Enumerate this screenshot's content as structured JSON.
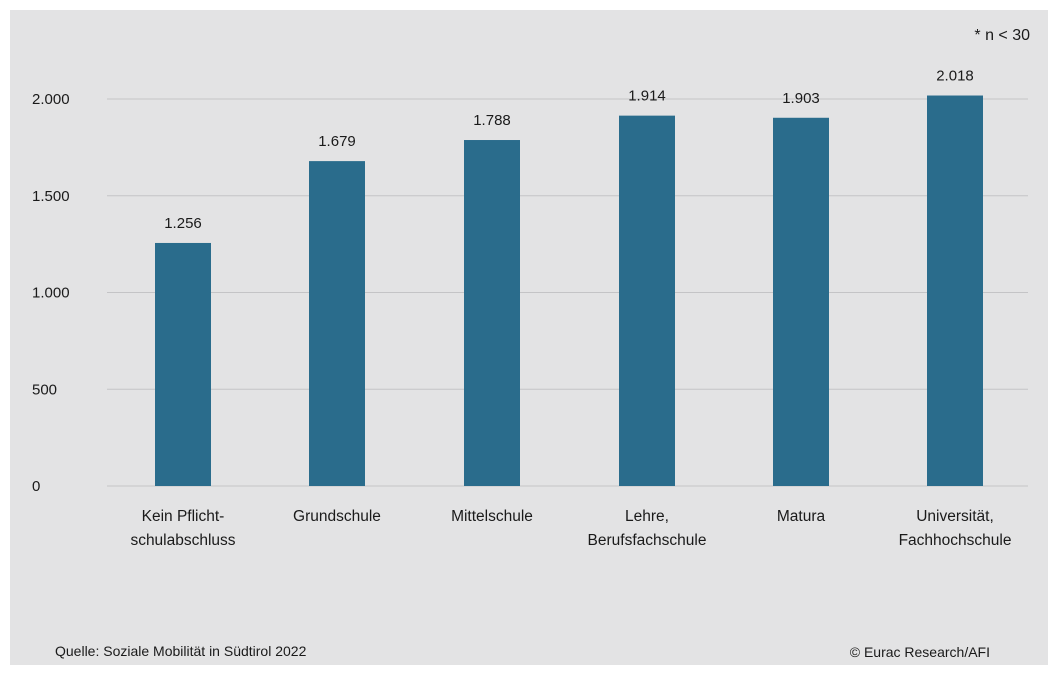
{
  "chart_data": {
    "type": "bar",
    "categories": [
      [
        "Kein Pflicht-",
        "schulabschluss"
      ],
      [
        "Grundschule"
      ],
      [
        "Mittelschule"
      ],
      [
        "Lehre,",
        "Berufsfachschule"
      ],
      [
        "Matura"
      ],
      [
        "Universität,",
        "Fachhochschule"
      ]
    ],
    "values": [
      1256,
      1679,
      1788,
      1914,
      1903,
      2018
    ],
    "value_labels": [
      "1.256",
      "1.679",
      "1.788",
      "1.914",
      "1.903",
      "2.018"
    ],
    "yticks": [
      0,
      500,
      1000,
      1500,
      2000
    ],
    "ytick_labels": [
      "0",
      "500",
      "1.000",
      "1.500",
      "2.000"
    ],
    "ylim": [
      0,
      2000
    ],
    "grid": true,
    "colors": {
      "bar": "#2a6c8c",
      "grid": "#c4c4c6",
      "background": "#e3e3e4"
    }
  },
  "notes": {
    "sample_note": "* n < 30",
    "source": "Quelle: Soziale Mobilität in Südtirol 2022",
    "copyright": "© Eurac Research/AFI"
  }
}
